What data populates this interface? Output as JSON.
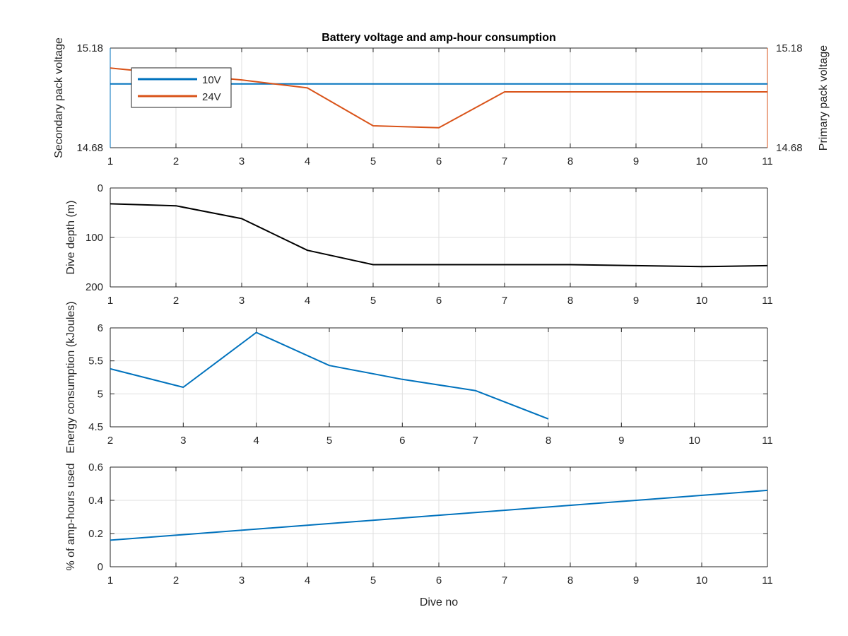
{
  "colors": {
    "voltage_10V": "#0072BD",
    "voltage_24V": "#D95319",
    "depth": "#000000",
    "energy": "#0072BD",
    "amphours": "#0072BD",
    "axis": "#262626",
    "grid": "#dfdfdf"
  },
  "chart_data": [
    {
      "type": "line",
      "title": "Battery voltage and amp-hour consumption",
      "xlabel": "",
      "ylabel_left": "Secondary pack voltage",
      "ylabel_right": "Primary pack voltage",
      "x_ticks": [
        "1",
        "2",
        "3",
        "4",
        "5",
        "6",
        "7",
        "8",
        "9",
        "10",
        "11"
      ],
      "y_ticks_left": [
        "14.68",
        "15.18"
      ],
      "y_ticks_right": [
        "14.68",
        "15.18"
      ],
      "xlim": [
        1,
        11
      ],
      "ylim": [
        14.68,
        15.18
      ],
      "grid": true,
      "legend_position": "top-left",
      "series": [
        {
          "name": "10V",
          "axis": "left",
          "x": [
            1,
            11
          ],
          "y": [
            15.0,
            15.0
          ]
        },
        {
          "name": "24V",
          "axis": "right",
          "x": [
            1,
            1.3,
            2,
            3,
            4,
            5,
            6,
            7,
            11
          ],
          "y": [
            15.08,
            15.07,
            15.05,
            15.02,
            14.98,
            14.79,
            14.78,
            14.96,
            14.96
          ]
        }
      ]
    },
    {
      "type": "line",
      "xlabel": "",
      "ylabel": "Dive depth (m)",
      "x_ticks": [
        "1",
        "2",
        "3",
        "4",
        "5",
        "6",
        "7",
        "8",
        "9",
        "10",
        "11"
      ],
      "y_ticks": [
        "0",
        "100",
        "200"
      ],
      "xlim": [
        1,
        11
      ],
      "ylim": [
        0,
        200
      ],
      "y_reversed": true,
      "grid": true,
      "series": [
        {
          "x": [
            1,
            2,
            3,
            4,
            5,
            6,
            7,
            8,
            9,
            10,
            11
          ],
          "y": [
            32,
            36,
            62,
            126,
            155,
            155,
            155,
            155,
            157,
            159,
            157
          ]
        }
      ]
    },
    {
      "type": "line",
      "xlabel": "",
      "ylabel": "Energy consumption (kJoules)",
      "x_ticks": [
        "2",
        "3",
        "4",
        "5",
        "6",
        "7",
        "8",
        "9",
        "10",
        "11"
      ],
      "y_ticks": [
        "4.5",
        "5",
        "5.5",
        "6"
      ],
      "xlim": [
        2,
        11
      ],
      "ylim": [
        4.5,
        6
      ],
      "grid": true,
      "series": [
        {
          "x": [
            2,
            3,
            4,
            5,
            6,
            7,
            8
          ],
          "y": [
            5.38,
            5.1,
            5.93,
            5.43,
            5.22,
            5.05,
            4.62
          ]
        }
      ]
    },
    {
      "type": "line",
      "xlabel": "Dive no",
      "ylabel": "% of amp-hours used",
      "x_ticks": [
        "1",
        "2",
        "3",
        "4",
        "5",
        "6",
        "7",
        "8",
        "9",
        "10",
        "11"
      ],
      "y_ticks": [
        "0",
        "0.2",
        "0.4",
        "0.6"
      ],
      "xlim": [
        1,
        11
      ],
      "ylim": [
        0,
        0.6
      ],
      "grid": true,
      "series": [
        {
          "x": [
            1,
            11
          ],
          "y": [
            0.16,
            0.46
          ]
        }
      ]
    }
  ]
}
